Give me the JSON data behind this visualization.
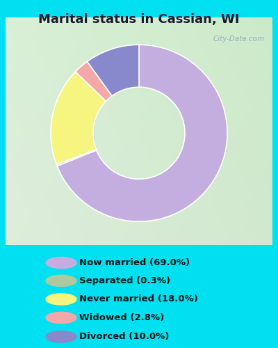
{
  "title": "Marital status in Cassian, WI",
  "slices": [
    69.0,
    0.3,
    18.0,
    2.8,
    10.0
  ],
  "labels": [
    "Now married (69.0%)",
    "Separated (0.3%)",
    "Never married (18.0%)",
    "Widowed (2.8%)",
    "Divorced (10.0%)"
  ],
  "colors": [
    "#c4aee0",
    "#b0c8a0",
    "#f5f580",
    "#f5a8a8",
    "#8888cc"
  ],
  "legend_colors": [
    "#c4aee0",
    "#b0c8a0",
    "#f5f580",
    "#f5a8a8",
    "#8888cc"
  ],
  "bg_outer": "#00e0f0",
  "title_color": "#1a1a2e",
  "watermark": "City-Data.com",
  "figsize": [
    4.0,
    5.0
  ],
  "dpi": 100,
  "chart_bg_colors": [
    "#d4e8d0",
    "#e8f0e0"
  ],
  "donut_width": 0.48
}
